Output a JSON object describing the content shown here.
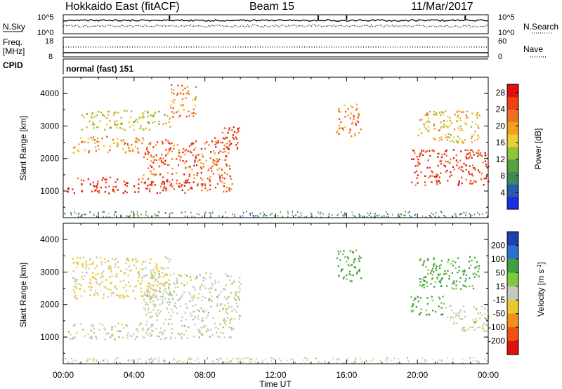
{
  "header": {
    "title": "Hokkaido East (fitACF)",
    "beam": "Beam 15",
    "date": "11/Mar/2017"
  },
  "noise_panel": {
    "left_label": "N.Sky",
    "right_label": "N.Search",
    "left_ticks": [
      "10^5",
      "10^0"
    ],
    "right_ticks": [
      "10^5",
      "10^0"
    ]
  },
  "freq_panel": {
    "left_label_1": "Freq.",
    "left_label_2": "[MHz]",
    "right_label": "Nave",
    "left_ticks": [
      "18",
      "8"
    ],
    "right_ticks": [
      "60",
      "0"
    ]
  },
  "cpid_panel": {
    "label": "CPID",
    "text": "normal (fast) 151"
  },
  "time_axis": {
    "xlabel": "Time UT",
    "ticks": [
      "00:00",
      "04:00",
      "08:00",
      "12:00",
      "16:00",
      "20:00",
      "00:00"
    ]
  },
  "chart_data": [
    {
      "type": "heatmap",
      "title": "",
      "xlabel": "Time UT",
      "ylabel": "Slant Range [km]",
      "x_ticks_hours": [
        0,
        4,
        8,
        12,
        16,
        20,
        24
      ],
      "ylim": [
        180,
        4500
      ],
      "y_ticks": [
        1000,
        2000,
        3000,
        4000
      ],
      "colorbar": {
        "label": "Power [dB]",
        "ticks": [
          4,
          8,
          12,
          16,
          20,
          24,
          28
        ],
        "range": [
          0,
          30
        ],
        "colors": [
          "#1a2ee0",
          "#2a5aa8",
          "#3a8a5a",
          "#5aa040",
          "#8cc43a",
          "#e8d030",
          "#f0a020",
          "#f07020",
          "#f04010",
          "#e01010"
        ]
      },
      "regions": [
        {
          "t": [
            0.2,
            7.0
          ],
          "r": [
            950,
            1450
          ],
          "v": 27
        },
        {
          "t": [
            7.0,
            9.6
          ],
          "r": [
            1000,
            1500
          ],
          "v": 25
        },
        {
          "t": [
            0.5,
            4.5
          ],
          "r": [
            2200,
            2700
          ],
          "v": 20
        },
        {
          "t": [
            4.5,
            9.5
          ],
          "r": [
            1500,
            2600
          ],
          "v": 24
        },
        {
          "t": [
            1.0,
            6.0
          ],
          "r": [
            2900,
            3500
          ],
          "v": 16
        },
        {
          "t": [
            6.0,
            7.5
          ],
          "r": [
            3300,
            4300
          ],
          "v": 22
        },
        {
          "t": [
            8.5,
            10.0
          ],
          "r": [
            2300,
            3000
          ],
          "v": 26
        },
        {
          "t": [
            15.4,
            16.8
          ],
          "r": [
            2700,
            3700
          ],
          "v": 22
        },
        {
          "t": [
            19.6,
            24.0
          ],
          "r": [
            1200,
            2300
          ],
          "v": 26
        },
        {
          "t": [
            20.0,
            23.5
          ],
          "r": [
            2500,
            3500
          ],
          "v": 18
        }
      ]
    },
    {
      "type": "heatmap",
      "title": "",
      "xlabel": "Time UT",
      "ylabel": "Slant Range [km]",
      "x_ticks_hours": [
        0,
        4,
        8,
        12,
        16,
        20,
        24
      ],
      "ylim": [
        180,
        4500
      ],
      "y_ticks": [
        1000,
        2000,
        3000,
        4000
      ],
      "colorbar": {
        "label": "Velocity [m s-1]",
        "ticks": [
          "200",
          "100",
          "50",
          "15",
          "-15",
          "-50",
          "-100",
          "-200"
        ],
        "colors": [
          "#1f3fb0",
          "#2f6fd0",
          "#40a040",
          "#7ec840",
          "#c8c8c0",
          "#e8c830",
          "#f09020",
          "#f05010",
          "#e01010"
        ]
      },
      "regions": [
        {
          "t": [
            0.2,
            7.0
          ],
          "r": [
            950,
            1450
          ],
          "v": 0
        },
        {
          "t": [
            7.0,
            9.6
          ],
          "r": [
            1000,
            1500
          ],
          "v": 0
        },
        {
          "t": [
            0.5,
            6.0
          ],
          "r": [
            2200,
            3500
          ],
          "v": -20
        },
        {
          "t": [
            4.5,
            10.0
          ],
          "r": [
            1500,
            3000
          ],
          "v": 0
        },
        {
          "t": [
            15.4,
            16.8
          ],
          "r": [
            2700,
            3700
          ],
          "v": 60
        },
        {
          "t": [
            19.6,
            21.5
          ],
          "r": [
            1700,
            2300
          ],
          "v": 60
        },
        {
          "t": [
            21.5,
            24.0
          ],
          "r": [
            1200,
            2000
          ],
          "v": 0
        },
        {
          "t": [
            20.0,
            23.5
          ],
          "r": [
            2500,
            3500
          ],
          "v": 60
        }
      ]
    }
  ]
}
